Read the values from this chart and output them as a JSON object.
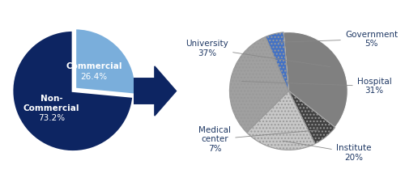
{
  "pie1": {
    "labels": [
      "Commercial",
      "Non-\nCommercial"
    ],
    "values": [
      26.4,
      73.2
    ],
    "colors": [
      "#7aaedb",
      "#0d2562"
    ],
    "text_colors": [
      "white",
      "white"
    ],
    "startangle": 90,
    "pct_labels": [
      "26.4%",
      "73.2%"
    ],
    "explode": [
      0.05,
      0.0
    ]
  },
  "pie2": {
    "labels": [
      "University",
      "Medical\ncenter",
      "Institute",
      "Hospital",
      "Government"
    ],
    "values": [
      37,
      7,
      20,
      31,
      5
    ],
    "colors": [
      "#808080",
      "#404040",
      "#c8c8c8",
      "#a0a0a0",
      "#4472c4"
    ],
    "hatch": [
      "",
      "....",
      "....",
      "....",
      "...."
    ],
    "startangle": 95,
    "label_colors": [
      "#1f3864",
      "#1f3864",
      "#1f3864",
      "#1f3864",
      "#1f3864"
    ]
  },
  "arrow_color": "#0d2562",
  "background_color": "#ffffff",
  "label_fontsize": 7.5,
  "pct_fontsize": 7.5
}
